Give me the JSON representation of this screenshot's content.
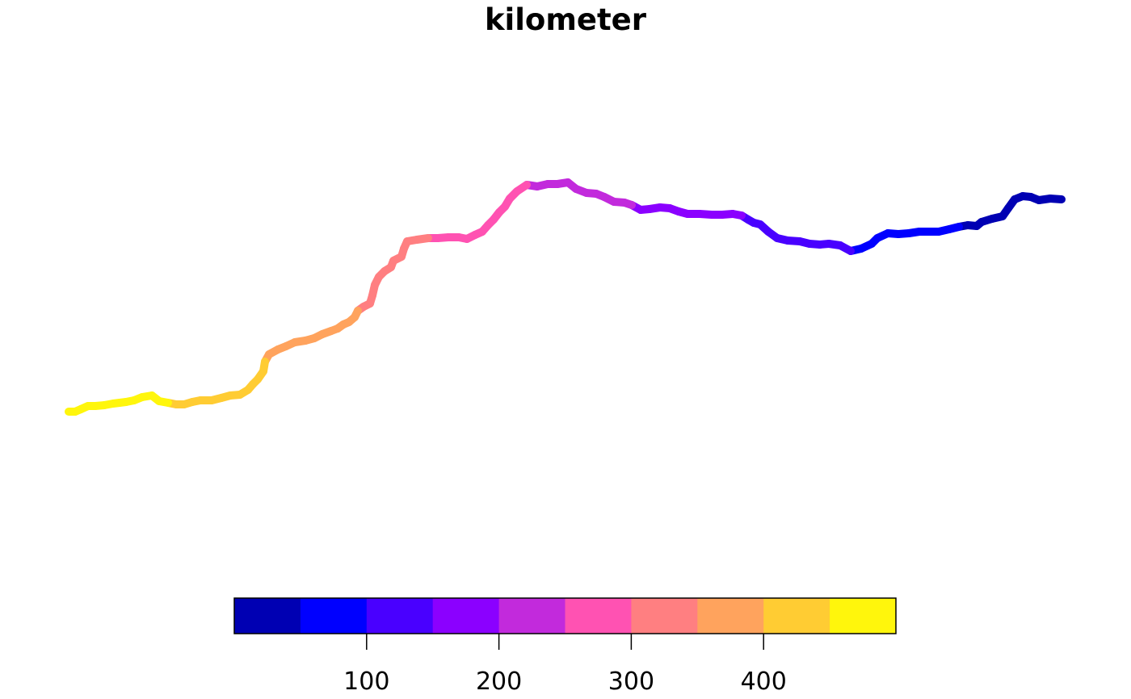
{
  "chart_data": {
    "type": "line",
    "title": "kilometer",
    "description_of_encoding": "river centerline colored by kilometer value",
    "colorbar": {
      "breaks": [
        0,
        50,
        100,
        150,
        200,
        250,
        300,
        350,
        400,
        450,
        500
      ],
      "colors": [
        "#0000B3",
        "#0000FF",
        "#4900FF",
        "#8B00FF",
        "#C22ADC",
        "#FF52B2",
        "#FF7F81",
        "#FFA35D",
        "#FFCC33",
        "#FFF60C"
      ],
      "tick_values": [
        100,
        200,
        300,
        400
      ],
      "tick_labels": [
        "100",
        "200",
        "300",
        "400"
      ]
    },
    "grid": false,
    "legend": "bottom-colorbar"
  }
}
